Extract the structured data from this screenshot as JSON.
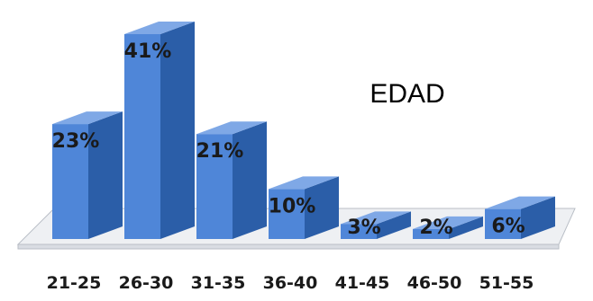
{
  "chart_data": {
    "type": "bar",
    "title": "EDAD",
    "categories": [
      "21-25",
      "26-30",
      "31-35",
      "36-40",
      "41-45",
      "46-50",
      "51-55"
    ],
    "values": [
      23,
      41,
      21,
      10,
      3,
      2,
      6
    ],
    "value_labels": [
      "23%",
      "41%",
      "21%",
      "10%",
      "3%",
      "2%",
      "6%"
    ],
    "ylim": [
      0,
      41
    ],
    "grid": false,
    "legend": "none",
    "style": "3d-column",
    "colors": {
      "bar_front": "#4f86d8",
      "bar_side": "#2b5ea8",
      "bar_top": "#7fa8e6",
      "floor": "#eef0f3",
      "floor_stroke": "#b9bec6"
    }
  }
}
